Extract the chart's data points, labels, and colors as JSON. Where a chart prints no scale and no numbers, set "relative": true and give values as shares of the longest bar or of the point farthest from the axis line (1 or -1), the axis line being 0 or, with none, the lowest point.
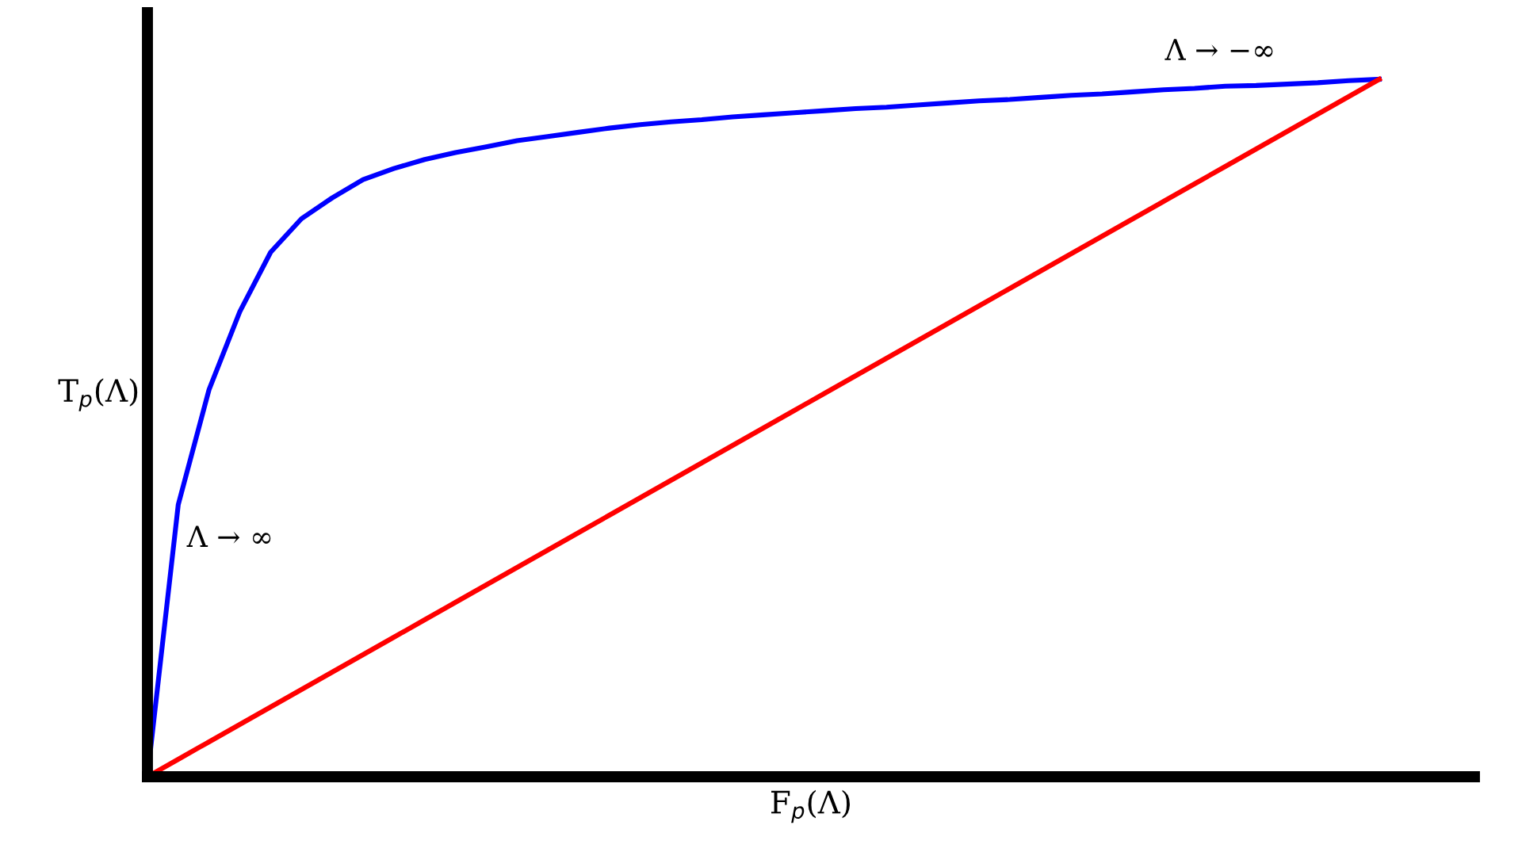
{
  "chart_data": {
    "type": "line",
    "relative": true,
    "xlabel": "F$_{p}$(Λ)",
    "ylabel": "T$_{p}$(Λ)",
    "legend": false,
    "marker": "none",
    "line_style": "solid",
    "annotations": [
      "Λ → ∞",
      "Λ → −∞"
    ],
    "categories": [
      null,
      null,
      null,
      null,
      null,
      null,
      null,
      null,
      null,
      null,
      null,
      null,
      null,
      null,
      null,
      null,
      null,
      null,
      null,
      null,
      null,
      null,
      null,
      null,
      null,
      null,
      null,
      null,
      null,
      null,
      null,
      null,
      null,
      null,
      null,
      null,
      null,
      null,
      null,
      null,
      null
    ],
    "series": [
      {
        "color": "#0000ff",
        "values": [
          0,
          0.39,
          0.555,
          0.667,
          0.752,
          0.8,
          0.83,
          0.856,
          0.872,
          0.885,
          0.895,
          0.903,
          0.912,
          0.918,
          0.924,
          0.93,
          0.935,
          0.939,
          0.942,
          0.946,
          0.949,
          0.952,
          0.955,
          0.958,
          0.96,
          0.963,
          0.966,
          0.969,
          0.971,
          0.974,
          0.977,
          0.979,
          0.982,
          0.985,
          0.987,
          0.99,
          0.991,
          0.993,
          0.995,
          0.998,
          1
        ]
      },
      {
        "color": "#ff0000",
        "values": [
          0,
          0.025,
          0.05,
          0.075,
          0.1,
          0.125,
          0.15,
          0.175,
          0.2,
          0.225,
          0.25,
          0.275,
          0.3,
          0.325,
          0.35,
          0.375,
          0.4,
          0.425,
          0.45,
          0.475,
          0.5,
          0.525,
          0.55,
          0.575,
          0.6,
          0.625,
          0.65,
          0.675,
          0.7,
          0.725,
          0.75,
          0.775,
          0.8,
          0.825,
          0.85,
          0.875,
          0.9,
          0.925,
          0.95,
          0.975,
          1
        ]
      }
    ]
  }
}
